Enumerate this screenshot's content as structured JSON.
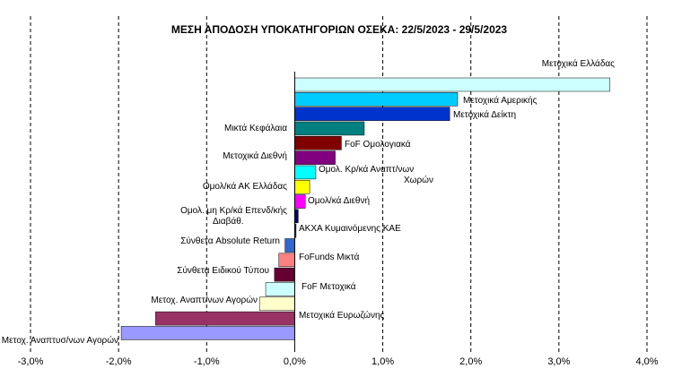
{
  "chart_data": {
    "type": "bar",
    "orientation": "horizontal",
    "title": "ΜΕΣΗ ΑΠΟΔΟΣΗ ΥΠΟΚΑΤΗΓΟΡΙΩΝ  ΟΣΕΚΑ:  22/5/2023  - 29/5/2023",
    "xlabel": "",
    "ylabel": "",
    "xlim": [
      -3.0,
      4.0
    ],
    "ticks": [
      -3.0,
      -2.0,
      -1.0,
      0.0,
      1.0,
      2.0,
      3.0,
      4.0
    ],
    "tick_labels": [
      "-3,0%",
      "-2,0%",
      "-1,0%",
      "0,0%",
      "1,0%",
      "2,0%",
      "3,0%",
      "4,0%"
    ],
    "grid": "vertical-dashed",
    "categories": [
      "Μετοχικά Ελλάδας",
      "Μετοχικά Αμερικής",
      "Μετοχικά Δείκτη",
      "Μικτά Κεφάλαια",
      "FoF Ομολογιακά",
      "Μετοχικά Διεθνή",
      "Ομολ. Κρ/κά Αναπτ/νων Χωρών",
      "Ομολ/κά ΑΚ Ελλάδας",
      "Ομολ/κά Διεθνή",
      "Ομολ. μη Κρ/κά Επενδ/κής Διαβάθ.",
      "ΑΚΧΑ Κυμαινόμενης ΚΑΕ",
      "Σύνθετα Absolute Return",
      "FoFunds Μικτά",
      "Σύνθετα Ειδικού Τύπου",
      "FoF Μετοχικά",
      "Μετοχ. Αναπτ/νων Αγορών",
      "Μετοχικά Ευρωζώνης",
      "Μετοχ. Αναπτυσ/νων Αγορών"
    ],
    "values": [
      3.58,
      1.85,
      1.76,
      0.79,
      0.53,
      0.46,
      0.24,
      0.17,
      0.12,
      0.04,
      0.01,
      -0.11,
      -0.18,
      -0.23,
      -0.33,
      -0.4,
      -1.58,
      -1.97
    ],
    "colors": [
      "#CCFFFF",
      "#00CCFF",
      "#0033CC",
      "#008080",
      "#800000",
      "#800080",
      "#00FFFF",
      "#FFFF00",
      "#FF00FF",
      "#000080",
      "#0000FF",
      "#3366CC",
      "#FF8080",
      "#660033",
      "#CCFFFF",
      "#FFFFCC",
      "#993366",
      "#9999FF"
    ],
    "label_side": [
      "left",
      "right",
      "right",
      "left",
      "right",
      "left",
      "right",
      "left",
      "right",
      "left",
      "right",
      "left",
      "right",
      "left",
      "right",
      "left",
      "right",
      "left"
    ]
  }
}
